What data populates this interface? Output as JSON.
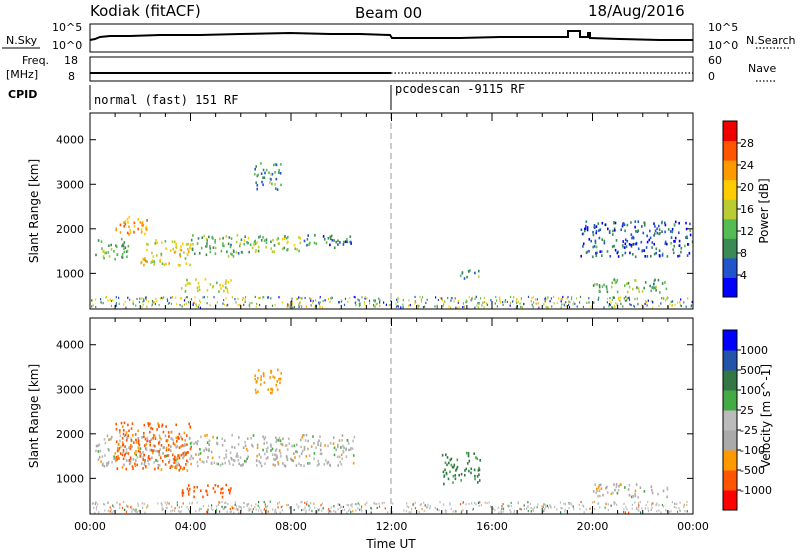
{
  "header": {
    "station": "Kodiak (fitACF)",
    "beam": "Beam 00",
    "date": "18/Aug/2016"
  },
  "nsky": {
    "label": "N.Sky",
    "left_ticks": [
      "10^5",
      "10^0"
    ],
    "right_ticks": [
      "10^5",
      "10^0"
    ],
    "right_label": "N.Search"
  },
  "freq": {
    "label_line1": "Freq.",
    "label_line2": "[MHz]",
    "left_ticks": [
      "18",
      "8"
    ],
    "right_ticks": [
      "60",
      "0"
    ],
    "right_label": "Nave"
  },
  "cpid": {
    "label": "CPID",
    "segments": [
      "normal (fast) 151 RF",
      "pcodescan -9115 RF"
    ]
  },
  "colors": {
    "power": [
      "#0000ff",
      "#2255cc",
      "#3a8a55",
      "#55bb55",
      "#bbcc33",
      "#ffcc00",
      "#ff9900",
      "#ff5500",
      "#ee0000"
    ],
    "velocity": [
      "#ff0000",
      "#ff5500",
      "#ff9900",
      "#aaaaaa",
      "#bbbbbb",
      "#44aa44",
      "#337744",
      "#2255aa",
      "#0000ff"
    ],
    "ground": "#bbbbbb"
  },
  "chart_data": [
    {
      "type": "heatmap",
      "name": "power-panel",
      "xlabel": "",
      "ylabel": "Slant Range [km]",
      "xlim": [
        0,
        24
      ],
      "ylim": [
        200,
        4600
      ],
      "yticks": [
        "1000",
        "2000",
        "3000",
        "4000"
      ],
      "colorbar": {
        "label": "Power [dB]",
        "range": [
          0,
          32
        ],
        "ticks": [
          "4",
          "8",
          "12",
          "16",
          "20",
          "24",
          "28"
        ]
      },
      "echo_regions": [
        {
          "t0": 0.2,
          "t1": 1.5,
          "r0": 1300,
          "r1": 1800,
          "val": 12
        },
        {
          "t0": 1.0,
          "t1": 2.5,
          "r0": 1900,
          "r1": 2300,
          "val": 22
        },
        {
          "t0": 2.0,
          "t1": 4.0,
          "r0": 1200,
          "r1": 1800,
          "val": 18
        },
        {
          "t0": 4.0,
          "t1": 6.0,
          "r0": 1400,
          "r1": 1900,
          "val": 12
        },
        {
          "t0": 3.6,
          "t1": 5.6,
          "r0": 600,
          "r1": 900,
          "val": 16
        },
        {
          "t0": 6.0,
          "t1": 8.5,
          "r0": 1500,
          "r1": 1900,
          "val": 14
        },
        {
          "t0": 6.5,
          "t1": 7.6,
          "r0": 2900,
          "r1": 3500,
          "val": 10
        },
        {
          "t0": 8.5,
          "t1": 10.5,
          "r0": 1600,
          "r1": 1900,
          "val": 8
        },
        {
          "t0": 14.5,
          "t1": 15.5,
          "r0": 900,
          "r1": 1100,
          "val": 10
        },
        {
          "t0": 20.0,
          "t1": 23.0,
          "r0": 600,
          "r1": 900,
          "val": 12
        },
        {
          "t0": 19.5,
          "t1": 24.0,
          "r0": 1400,
          "r1": 2200,
          "val": 6
        }
      ]
    },
    {
      "type": "heatmap",
      "name": "velocity-panel",
      "xlabel": "Time UT",
      "ylabel": "Slant Range [km]",
      "xlim": [
        0,
        24
      ],
      "ylim": [
        200,
        4600
      ],
      "xticks": [
        "00:00",
        "04:00",
        "08:00",
        "12:00",
        "16:00",
        "20:00",
        "00:00"
      ],
      "yticks": [
        "1000",
        "2000",
        "3000",
        "4000"
      ],
      "colorbar": {
        "label": "Velocity [m s^-1]",
        "ticks": [
          "1000",
          "500",
          "100",
          "25",
          "-25",
          "-100",
          "-500",
          "-1000"
        ]
      },
      "echo_regions": [
        {
          "t0": 0.2,
          "t1": 10.5,
          "r0": 1300,
          "r1": 2000,
          "val": 0
        },
        {
          "t0": 1.0,
          "t1": 4.0,
          "r0": 1200,
          "r1": 2300,
          "val": -150
        },
        {
          "t0": 3.6,
          "t1": 5.6,
          "r0": 600,
          "r1": 900,
          "val": -300
        },
        {
          "t0": 6.5,
          "t1": 7.6,
          "r0": 2900,
          "r1": 3500,
          "val": -60
        },
        {
          "t0": 14.0,
          "t1": 15.5,
          "r0": 900,
          "r1": 1600,
          "val": 150
        },
        {
          "t0": 20.0,
          "t1": 23.0,
          "r0": 600,
          "r1": 900,
          "val": 0
        }
      ]
    }
  ]
}
